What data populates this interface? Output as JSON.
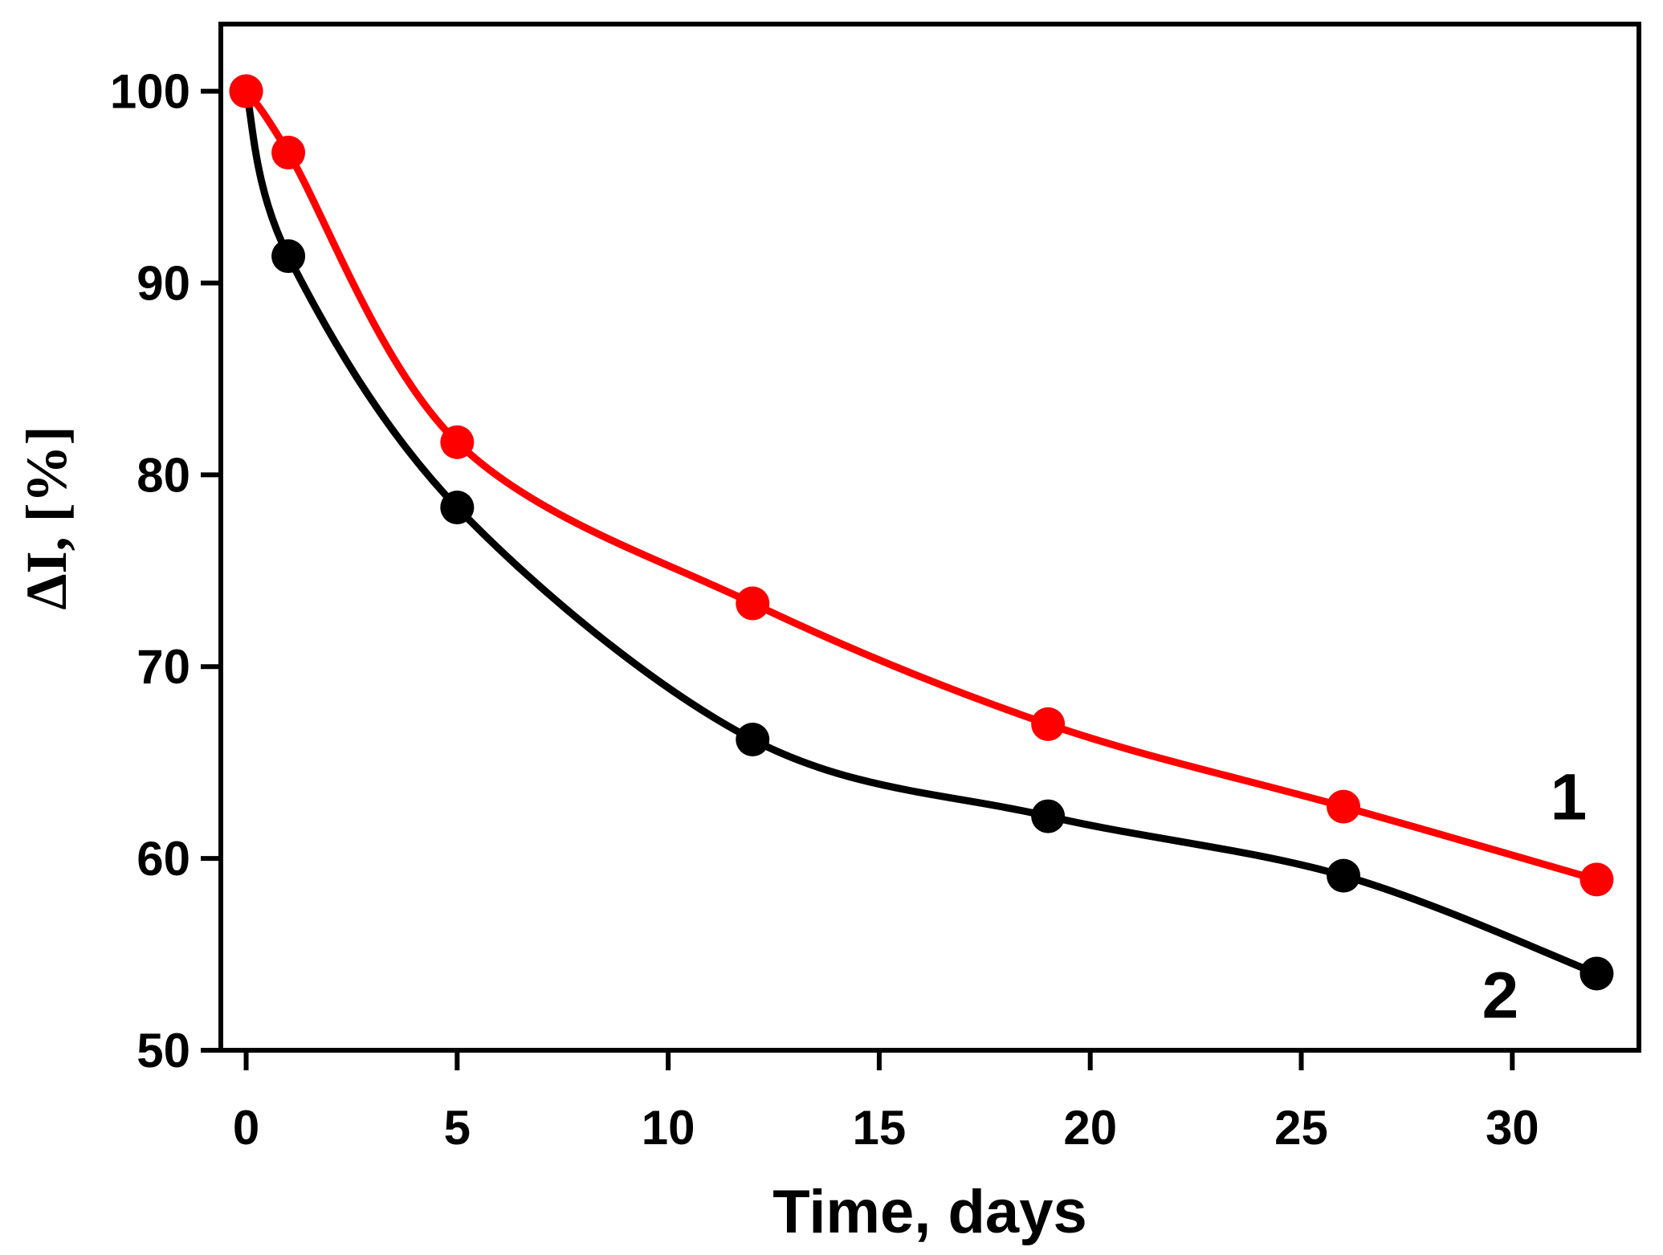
{
  "chart_data": {
    "type": "line",
    "title": "",
    "xlabel": "Time, days",
    "ylabel": "ΔI, [%]",
    "xlim": [
      -0.6,
      33
    ],
    "ylim": [
      50,
      103.5
    ],
    "xticks": [
      0,
      5,
      10,
      15,
      20,
      25,
      30
    ],
    "yticks": [
      50,
      60,
      70,
      80,
      90,
      100
    ],
    "grid": false,
    "x": [
      0,
      1,
      5,
      12,
      19,
      26,
      32
    ],
    "series": [
      {
        "name": "1",
        "color": "#ff0000",
        "values": [
          100,
          96.8,
          81.7,
          73.3,
          67.0,
          62.7,
          58.9
        ]
      },
      {
        "name": "2",
        "color": "#000000",
        "values": [
          100,
          91.4,
          78.3,
          66.2,
          62.2,
          59.1,
          54.0
        ]
      }
    ]
  }
}
